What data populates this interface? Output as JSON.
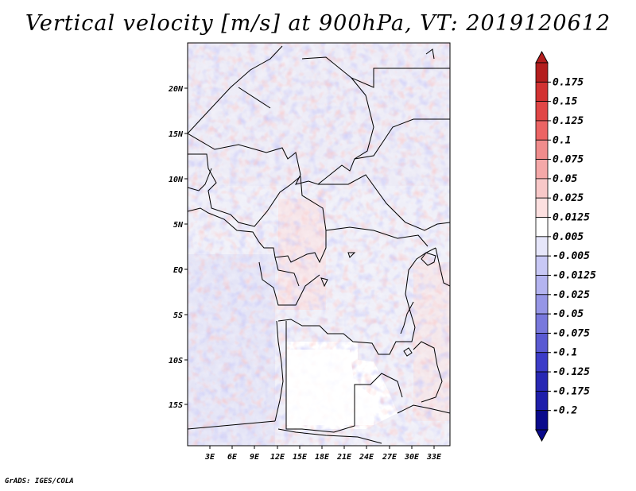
{
  "map": {
    "title": "Vertical velocity [m/s] at 900hPa, VT: 2019120612",
    "footer": "GrADS: IGES/COLA",
    "lat_ticks": [
      "20N",
      "15N",
      "10N",
      "5N",
      "EQ",
      "5S",
      "10S",
      "15S"
    ],
    "lon_ticks": [
      "3E",
      "6E",
      "9E",
      "12E",
      "15E",
      "18E",
      "21E",
      "24E",
      "27E",
      "30E",
      "33E"
    ],
    "colorbar_labels": [
      "0.175",
      "0.15",
      "0.125",
      "0.1",
      "0.075",
      "0.05",
      "0.025",
      "0.0125",
      "0.005",
      "-0.005",
      "-0.0125",
      "-0.025",
      "-0.05",
      "-0.075",
      "-0.1",
      "-0.125",
      "-0.175",
      "-0.2"
    ],
    "colorbar_colors": [
      "#b41e1e",
      "#d23232",
      "#e14646",
      "#ec6464",
      "#f08c8c",
      "#f4a8a8",
      "#f8c8c8",
      "#fce0e0",
      "#ffffff",
      "#e6e6fa",
      "#c8c8f5",
      "#b4b4f0",
      "#9696e6",
      "#7878dc",
      "#5a5ad2",
      "#3c3cc8",
      "#2828b4",
      "#1e1eaa",
      "#0a0a8c"
    ]
  }
}
